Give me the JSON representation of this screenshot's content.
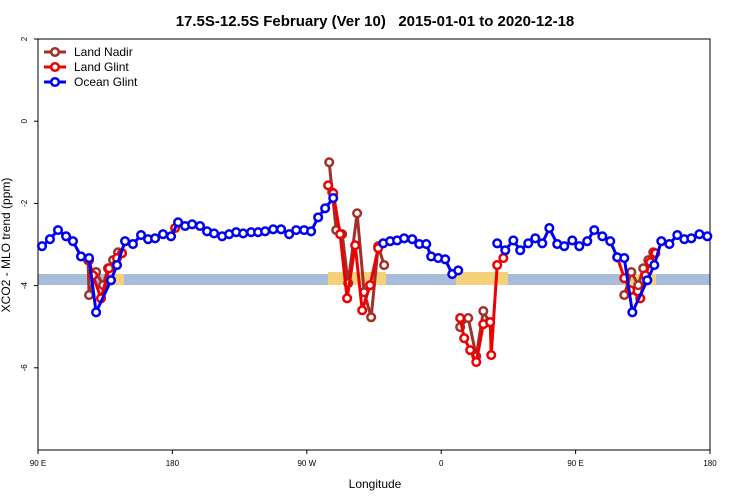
{
  "chart_data": {
    "type": "line",
    "title": "17.5S-12.5S February (Ver 10)   2015-01-01 to 2020-12-18",
    "x_label": "Longitude",
    "y_label": "XCO2 - MLO trend (ppm)",
    "xlim": [
      90,
      540
    ],
    "xticks": [
      {
        "value": 90,
        "label": "90 E"
      },
      {
        "value": 180,
        "label": "180"
      },
      {
        "value": 270,
        "label": "90 W"
      },
      {
        "value": 360,
        "label": "0"
      },
      {
        "value": 450,
        "label": "90 E"
      },
      {
        "value": 540,
        "label": "180"
      }
    ],
    "ylim": [
      -8,
      2
    ],
    "yticks": [
      -6,
      -4,
      -2,
      0,
      2
    ],
    "legend": "top-left",
    "series": [
      {
        "name": "Land Nadir",
        "color": "#a0302a",
        "x": [
          123.5,
          124.2,
          128.9,
          133.6,
          136.9,
          140.3,
          143.6,
          null,
          285.0,
          287.0,
          289.7,
          293.7,
          297.7,
          303.7,
          308.4,
          313.1,
          317.8,
          321.8,
          null,
          372.7,
          378.1,
          383.5,
          388.2,
          392.2,
          null,
          482.6,
          487.3,
          492.0,
          495.3,
          498.7,
          502.0
        ],
        "values": [
          -3.38,
          -4.23,
          -3.67,
          -3.99,
          -3.58,
          -3.38,
          -3.19,
          null,
          -1.0,
          -1.73,
          -2.65,
          -2.75,
          -3.94,
          -2.24,
          -4.16,
          -4.77,
          -3.04,
          -3.5,
          null,
          -5.01,
          -4.79,
          -5.72,
          -4.62,
          -4.89,
          null,
          -4.23,
          -3.67,
          -3.99,
          -3.58,
          -3.38,
          -3.19
        ]
      },
      {
        "name": "Land Glint",
        "color": "#ee0000",
        "x": [
          124.2,
          126.8,
          132.2,
          137.6,
          142.9,
          146.3,
          null,
          181.8,
          null,
          284.3,
          287.7,
          292.3,
          297.0,
          302.4,
          307.1,
          312.4,
          317.8,
          null,
          372.7,
          375.4,
          379.4,
          383.5,
          388.2,
          392.8,
          393.5,
          397.5,
          401.6,
          null,
          477.9,
          482.6,
          486.6,
          493.3,
          496.7,
          500.0,
          503.4
        ],
        "values": [
          -3.38,
          -3.75,
          -4.31,
          -3.58,
          -3.33,
          -3.21,
          null,
          -2.6,
          null,
          -1.56,
          -1.75,
          -2.75,
          -4.31,
          -3.02,
          -4.6,
          -3.99,
          -3.09,
          null,
          -4.79,
          -5.28,
          -5.57,
          -5.86,
          -4.94,
          -4.89,
          -5.69,
          -3.5,
          -3.33,
          null,
          -3.31,
          -3.82,
          -4.11,
          -4.31,
          -3.75,
          -3.43,
          -3.21
        ]
      },
      {
        "name": "Ocean Glint",
        "color": "#0000ee",
        "x": [
          92.7,
          98.0,
          103.4,
          108.8,
          113.4,
          118.8,
          124.2,
          128.9,
          138.9,
          142.9,
          148.3,
          153.6,
          159.0,
          163.7,
          168.4,
          173.7,
          179.1,
          183.8,
          188.5,
          193.2,
          198.5,
          203.2,
          207.9,
          213.3,
          218.0,
          222.7,
          227.4,
          232.7,
          237.4,
          242.1,
          247.5,
          252.8,
          258.2,
          262.9,
          268.2,
          272.9,
          277.6,
          282.3,
          287.7,
          null,
          321.2,
          325.8,
          330.5,
          335.2,
          340.6,
          345.3,
          350.0,
          353.3,
          358.0,
          362.7,
          367.4,
          371.4,
          null,
          397.5,
          402.9,
          408.3,
          412.9,
          418.3,
          423.0,
          427.7,
          432.4,
          437.7,
          442.4,
          447.8,
          452.5,
          457.8,
          462.5,
          467.9,
          473.2,
          477.9,
          482.6,
          488.0,
          498.0,
          502.7,
          507.4,
          512.8,
          518.1,
          522.8,
          527.5,
          532.9,
          538.2
        ],
        "values": [
          -3.04,
          -2.87,
          -2.65,
          -2.8,
          -2.92,
          -3.29,
          -3.33,
          -4.65,
          -3.87,
          -3.5,
          -2.92,
          -2.99,
          -2.77,
          -2.87,
          -2.85,
          -2.75,
          -2.8,
          -2.46,
          -2.55,
          -2.51,
          -2.55,
          -2.68,
          -2.73,
          -2.8,
          -2.75,
          -2.7,
          -2.73,
          -2.7,
          -2.7,
          -2.68,
          -2.63,
          -2.63,
          -2.75,
          -2.65,
          -2.65,
          -2.68,
          -2.34,
          -2.12,
          -1.87,
          null,
          -2.97,
          -2.92,
          -2.9,
          -2.85,
          -2.87,
          -2.99,
          -2.99,
          -3.29,
          -3.33,
          -3.36,
          -3.72,
          -3.63,
          null,
          -2.97,
          -3.14,
          -2.9,
          -3.14,
          -2.97,
          -2.85,
          -2.97,
          -2.6,
          -2.99,
          -3.04,
          -2.9,
          -3.04,
          -2.92,
          -2.65,
          -2.8,
          -2.92,
          -3.31,
          -3.33,
          -4.65,
          -3.87,
          -3.5,
          -2.92,
          -2.99,
          -2.77,
          -2.87,
          -2.85,
          -2.75,
          -2.8
        ]
      }
    ]
  }
}
